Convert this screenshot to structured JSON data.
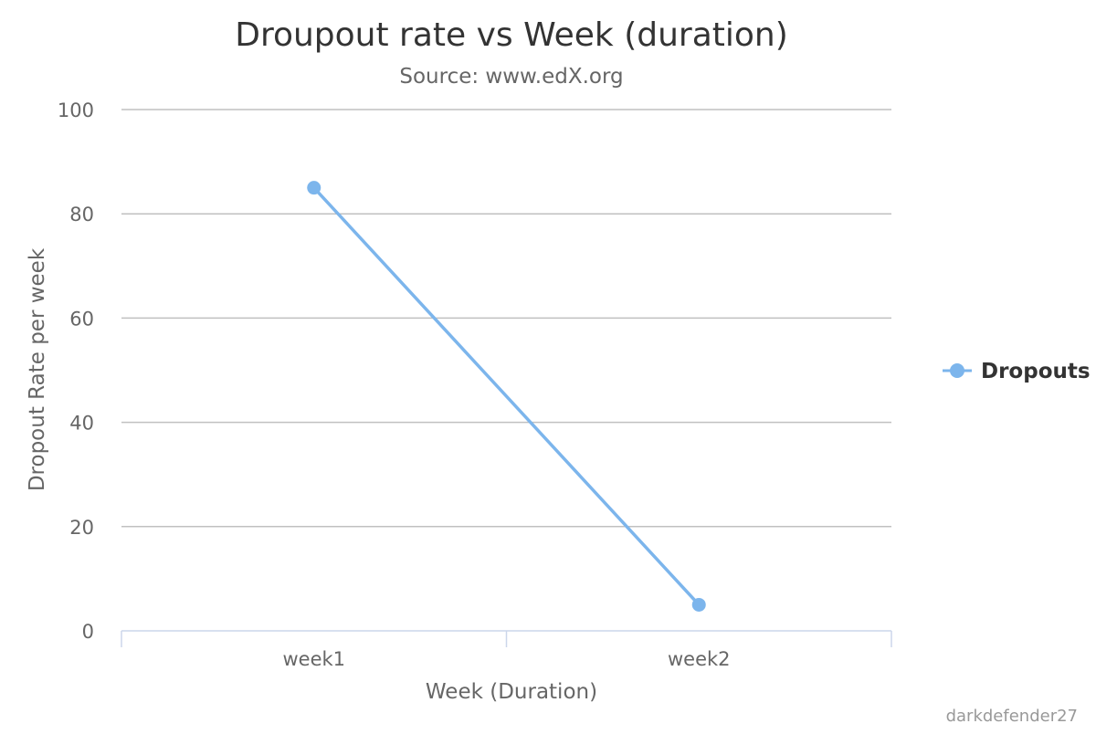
{
  "chart_data": {
    "type": "line",
    "title": "Droupout rate vs Week (duration)",
    "subtitle": "Source: www.edX.org",
    "xlabel": "Week (Duration)",
    "ylabel": "Dropout Rate per week",
    "categories": [
      "week1",
      "week2"
    ],
    "series": [
      {
        "name": "Dropouts",
        "values": [
          85,
          5
        ],
        "color": "#7cb5ec"
      }
    ],
    "ylim": [
      0,
      100
    ],
    "yticks": [
      0,
      20,
      40,
      60,
      80,
      100
    ],
    "grid": true,
    "legend_position": "right"
  },
  "credit": "darkdefender27",
  "colors": {
    "series": "#7cb5ec",
    "grid": "#c0c0c0",
    "axis_line": "#ccd6eb",
    "text": "#666666",
    "title": "#333333"
  }
}
